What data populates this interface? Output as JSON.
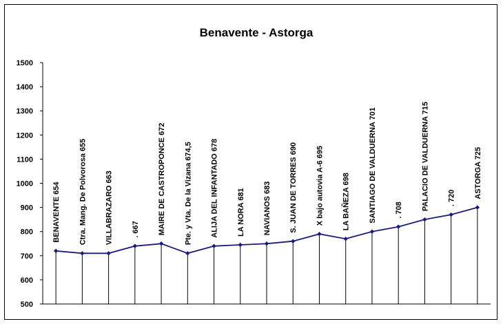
{
  "chart_data": {
    "type": "line",
    "title": "Benavente - Astorga",
    "xlabel": "",
    "ylabel": "",
    "ylim": [
      500,
      1500
    ],
    "yticks": [
      500,
      600,
      700,
      800,
      900,
      1000,
      1100,
      1200,
      1300,
      1400,
      1500
    ],
    "grid": false,
    "legend": "none",
    "colors": {
      "line": "#1a1a7a",
      "marker": "#1a1a7a",
      "drop": "#000000"
    },
    "points": [
      {
        "label": "BENAVENTE 654",
        "value": 720
      },
      {
        "label": "Ctra. Mang. De Polvorosa 655",
        "value": 710
      },
      {
        "label": "VILLABRAZARO 663",
        "value": 710
      },
      {
        "label": ". 667",
        "value": 740
      },
      {
        "label": "MAIRE DE CASTROPONCE 672",
        "value": 750
      },
      {
        "label": "Pte. y Vta. De la Vizana 674,5",
        "value": 710
      },
      {
        "label": "ALIJA DEL INFANTADO 678",
        "value": 740
      },
      {
        "label": "LA NORA 681",
        "value": 745
      },
      {
        "label": "NAVIANOS 683",
        "value": 750
      },
      {
        "label": "S. JUAN DE TORRES 690",
        "value": 760
      },
      {
        "label": "X  bajo autovia A-6 695",
        "value": 790
      },
      {
        "label": "LA BAÑEZA 698",
        "value": 770
      },
      {
        "label": "SANTIAGO DE VALDUERNA 701",
        "value": 800
      },
      {
        "label": ". 708",
        "value": 820
      },
      {
        "label": "PALACIO DE VALDUERNA 715",
        "value": 850
      },
      {
        "label": ". 720",
        "value": 870
      },
      {
        "label": "ASTORGA 725",
        "value": 900
      }
    ]
  }
}
